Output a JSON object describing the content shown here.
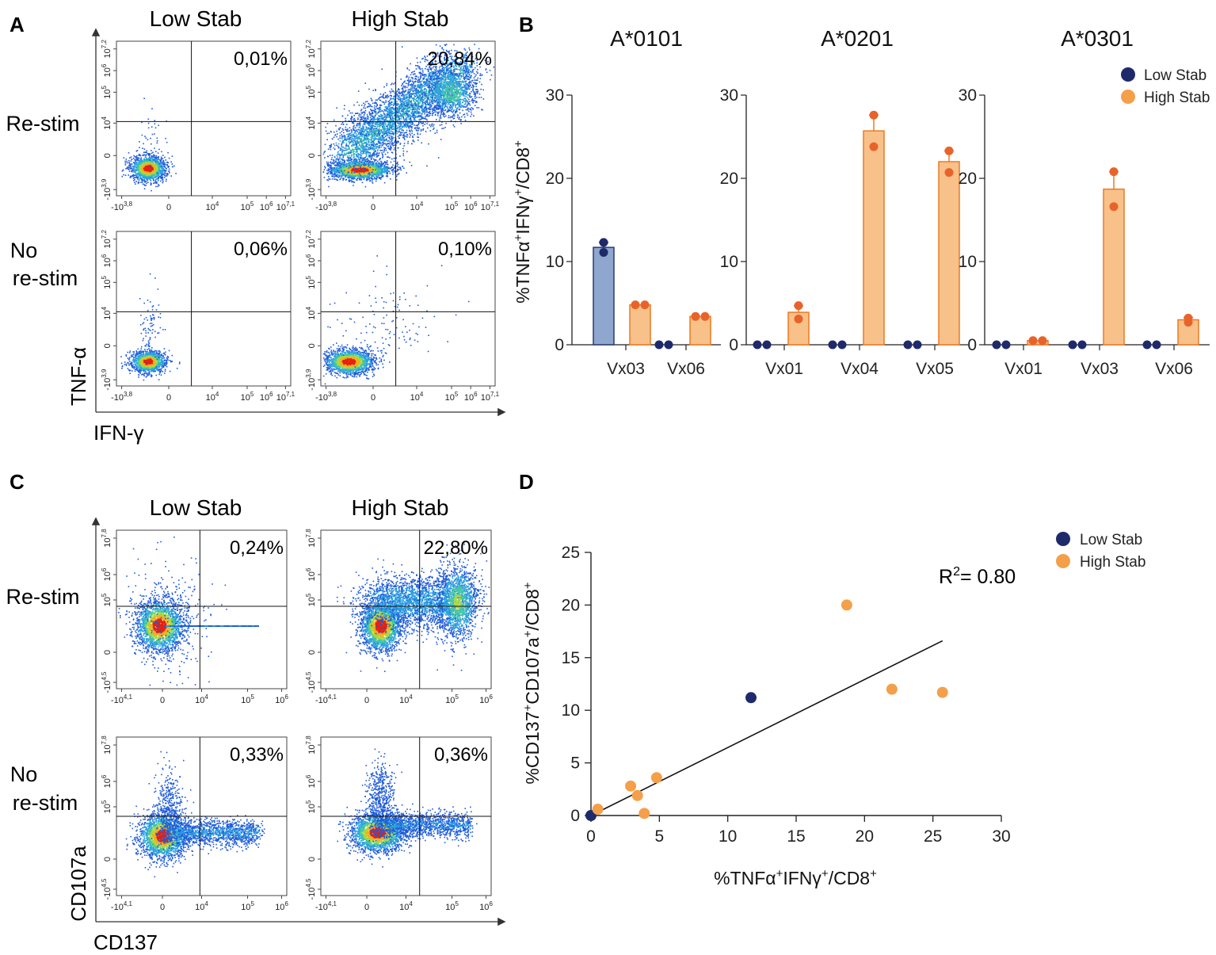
{
  "panels": {
    "A": {
      "letter": "A",
      "col_titles": [
        "Low Stab",
        "High Stab"
      ],
      "row_titles": [
        "Re-stim",
        "No re-stim"
      ],
      "row_title_lines": [
        [
          "Re-stim"
        ],
        [
          "No",
          "re-stim"
        ]
      ],
      "y_axis": "TNF-α",
      "x_axis": "IFN-γ",
      "x_ticks": [
        "-10^3,8",
        "0",
        "10^4",
        "10^5",
        "10^6",
        "10^7,1"
      ],
      "y_ticks": [
        "-10^3,9",
        "0",
        "10^4",
        "10^5",
        "10^6",
        "10^7,2"
      ],
      "percentages": [
        [
          "0,01%",
          "20,84%"
        ],
        [
          "0,06%",
          "0,10%"
        ]
      ]
    },
    "B": {
      "letter": "B",
      "y_label": "%TNFα+IFNγ+/CD8+",
      "legend": [
        "Low Stab",
        "High Stab"
      ],
      "y_ticks": [
        "0",
        "10",
        "20",
        "30"
      ]
    },
    "C": {
      "letter": "C",
      "col_titles": [
        "Low Stab",
        "High Stab"
      ],
      "row_titles": [
        "Re-stim",
        "No re-stim"
      ],
      "row_title_lines": [
        [
          "Re-stim"
        ],
        [
          "No",
          "re-stim"
        ]
      ],
      "y_axis": "CD107a",
      "x_axis": "CD137",
      "x_ticks": [
        "-10^4,1",
        "0",
        "10^4",
        "10^5",
        "10^6"
      ],
      "y_ticks": [
        "-10^4,5",
        "0",
        "10^5",
        "10^6",
        "10^7,8"
      ],
      "percentages": [
        [
          "0,24%",
          "22,80%"
        ],
        [
          "0,33%",
          "0,36%"
        ]
      ]
    },
    "D": {
      "letter": "D",
      "legend": [
        "Low Stab",
        "High Stab"
      ],
      "r2": "R²= 0.80",
      "x_label": "%TNFα+IFNγ+/CD8+",
      "y_label": "%CD137+CD107a+/CD8+"
    }
  },
  "colors": {
    "low_dot": "#1f2a6b",
    "high_dot": "#f4a04a",
    "low_bar": "#8fa6cf",
    "high_bar": "#f8c18a",
    "high_point": "#e8632a",
    "high_edge": "#ec7a22"
  },
  "chart_data": [
    {
      "type": "bar",
      "title": "A*0101",
      "categories": [
        "Vx03",
        "Vx06"
      ],
      "ylabel": "%TNFα+IFNγ+/CD8+",
      "ylim": [
        0,
        30
      ],
      "series": [
        {
          "name": "Low Stab",
          "values": [
            11.7,
            0.0
          ],
          "points": [
            [
              12.3,
              11.1
            ],
            [
              0.0,
              0.0
            ]
          ],
          "err": [
            0.6,
            0
          ]
        },
        {
          "name": "High Stab",
          "values": [
            4.8,
            3.4
          ],
          "points": [
            [
              4.8,
              4.8
            ],
            [
              3.4,
              3.4
            ]
          ],
          "err": [
            0,
            0
          ]
        }
      ]
    },
    {
      "type": "bar",
      "title": "A*0201",
      "categories": [
        "Vx01",
        "Vx04",
        "Vx05"
      ],
      "ylabel": "%TNFα+IFNγ+/CD8+",
      "ylim": [
        0,
        30
      ],
      "series": [
        {
          "name": "Low Stab",
          "values": [
            0.0,
            0.0,
            0.0
          ],
          "points": [
            [
              0.0,
              0.0
            ],
            [
              0.0,
              0.0
            ],
            [
              0.0,
              0.0
            ]
          ],
          "err": [
            0,
            0,
            0
          ]
        },
        {
          "name": "High Stab",
          "values": [
            3.9,
            25.7,
            22.0
          ],
          "points": [
            [
              4.7,
              3.1
            ],
            [
              27.6,
              23.8
            ],
            [
              23.3,
              20.7
            ]
          ],
          "err": [
            0.8,
            1.9,
            1.3
          ]
        }
      ]
    },
    {
      "type": "bar",
      "title": "A*0301",
      "categories": [
        "Vx01",
        "Vx03",
        "Vx06"
      ],
      "ylabel": "%TNFα+IFNγ+/CD8+",
      "ylim": [
        0,
        30
      ],
      "series": [
        {
          "name": "Low Stab",
          "values": [
            0.0,
            0.0,
            0.0
          ],
          "points": [
            [
              0.0,
              0.0
            ],
            [
              0.0,
              0.0
            ],
            [
              0.0,
              0.0
            ]
          ],
          "err": [
            0,
            0,
            0
          ]
        },
        {
          "name": "High Stab",
          "values": [
            0.5,
            18.7,
            3.0
          ],
          "points": [
            [
              0.5,
              0.5
            ],
            [
              20.8,
              16.6
            ],
            [
              3.2,
              2.7
            ]
          ],
          "err": [
            0,
            2.1,
            0.3
          ]
        }
      ]
    },
    {
      "type": "scatter",
      "title": "",
      "xlabel": "%TNFα+IFNγ+/CD8+",
      "ylabel": "%CD137+CD107a+/CD8+",
      "xlim": [
        0,
        30
      ],
      "ylim": [
        0,
        25
      ],
      "x_ticks": [
        0,
        5,
        10,
        15,
        20,
        25,
        30
      ],
      "y_ticks": [
        0,
        5,
        10,
        15,
        20,
        25
      ],
      "series": [
        {
          "name": "Low Stab",
          "x": [
            11.7,
            0.0
          ],
          "y": [
            11.2,
            0.0
          ]
        },
        {
          "name": "High Stab",
          "x": [
            18.7,
            22.0,
            25.7,
            4.8,
            2.9,
            3.4,
            3.9,
            0.5
          ],
          "y": [
            20.0,
            12.0,
            11.7,
            3.6,
            2.8,
            1.9,
            0.2,
            0.6
          ]
        }
      ],
      "fit_line": {
        "x": [
          0,
          25.7
        ],
        "y": [
          0.0,
          16.6
        ]
      },
      "r2": 0.8
    }
  ]
}
